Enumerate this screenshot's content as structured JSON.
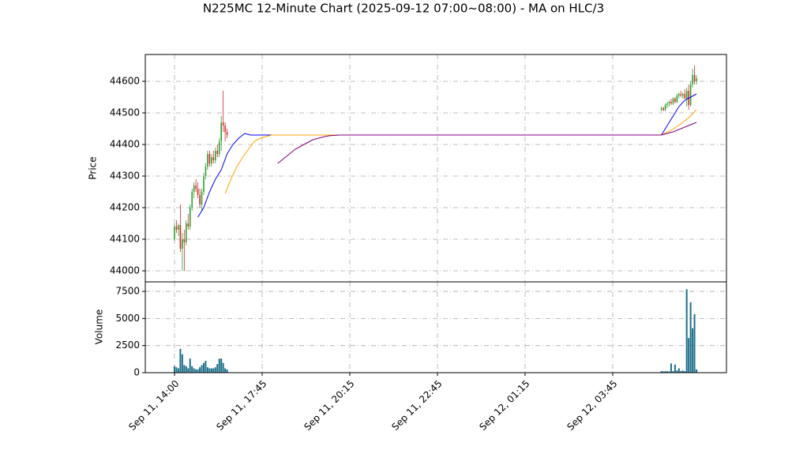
{
  "chart_data": {
    "type": "candlestick",
    "title": "N225MC 12-Minute Chart (2025-09-12 07:00~08:00) - MA on HLC/3",
    "ylabel": "Price",
    "grid": true,
    "xlim": [
      -15,
      283.4
    ],
    "xticks": [
      {
        "value": 0,
        "label": "Sep 11, 14:00"
      },
      {
        "value": 45,
        "label": "Sep 11, 17:45"
      },
      {
        "value": 90,
        "label": "Sep 11, 20:15"
      },
      {
        "value": 135,
        "label": "Sep 11, 22:45"
      },
      {
        "value": 180,
        "label": "Sep 12, 01:15"
      },
      {
        "value": 225,
        "label": "Sep 12, 03:45"
      }
    ],
    "ylim": [
      43965,
      44685
    ],
    "yticks": [
      44000,
      44100,
      44200,
      44300,
      44400,
      44500,
      44600
    ],
    "up_color": "#2ca02c",
    "down_color": "#d62728",
    "candles": {
      "x": [
        0,
        1,
        2,
        3,
        4,
        5,
        6,
        7,
        8,
        9,
        10,
        11,
        12,
        13,
        14,
        15,
        16,
        17,
        18,
        19,
        20,
        21,
        22,
        23,
        24,
        25,
        26,
        27,
        250,
        251,
        252,
        253,
        254,
        255,
        256,
        257,
        258,
        259,
        260,
        261,
        262,
        263,
        264,
        265,
        266,
        267,
        268
      ],
      "open": [
        44100,
        44140,
        44130,
        44145,
        44070,
        44100,
        44090,
        44150,
        44140,
        44200,
        44250,
        44270,
        44260,
        44240,
        44210,
        44250,
        44300,
        44330,
        44370,
        44340,
        44360,
        44350,
        44380,
        44370,
        44410,
        44470,
        44460,
        44440,
        44510,
        44515,
        44510,
        44525,
        44530,
        44535,
        44530,
        44545,
        44535,
        44555,
        44560,
        44555,
        44560,
        44545,
        44570,
        44525,
        44590,
        44620,
        44600
      ],
      "high": [
        44150,
        44160,
        44150,
        44210,
        44120,
        44130,
        44160,
        44180,
        44210,
        44260,
        44280,
        44290,
        44280,
        44260,
        44260,
        44310,
        44340,
        44380,
        44380,
        44370,
        44380,
        44390,
        44400,
        44420,
        44490,
        44570,
        44470,
        44450,
        44520,
        44520,
        44530,
        44535,
        44540,
        44545,
        44550,
        44550,
        44560,
        44565,
        44570,
        44565,
        44575,
        44580,
        44590,
        44600,
        44640,
        44650,
        44620
      ],
      "low": [
        44095,
        44120,
        44110,
        44060,
        44000,
        44000,
        44080,
        44130,
        44130,
        44190,
        44230,
        44250,
        44230,
        44200,
        44190,
        44240,
        44290,
        44320,
        44330,
        44330,
        44340,
        44340,
        44360,
        44360,
        44380,
        44440,
        44410,
        44420,
        44505,
        44505,
        44505,
        44515,
        44520,
        44525,
        44525,
        44530,
        44530,
        44545,
        44550,
        44545,
        44550,
        44520,
        44510,
        44520,
        44580,
        44590,
        44590
      ],
      "close": [
        44140,
        44130,
        44145,
        44070,
        44100,
        44090,
        44150,
        44140,
        44200,
        44250,
        44270,
        44260,
        44240,
        44210,
        44250,
        44300,
        44330,
        44370,
        44340,
        44360,
        44350,
        44380,
        44370,
        44410,
        44470,
        44460,
        44440,
        44430,
        44515,
        44510,
        44525,
        44530,
        44535,
        44530,
        44545,
        44535,
        44555,
        44560,
        44555,
        44560,
        44545,
        44570,
        44525,
        44590,
        44620,
        44600,
        44610
      ]
    },
    "series": [
      {
        "color": "#0000ff",
        "x": [
          12,
          15,
          18,
          21,
          24,
          27,
          30,
          33,
          36,
          39,
          42,
          48,
          100,
          150,
          200,
          250,
          253,
          256,
          259,
          262,
          265,
          268
        ],
        "values": [
          44170,
          44200,
          44250,
          44290,
          44320,
          44370,
          44400,
          44420,
          44435,
          44430,
          44430,
          44430,
          44430,
          44430,
          44430,
          44430,
          44460,
          44490,
          44520,
          44540,
          44550,
          44560
        ]
      },
      {
        "color": "#ffa500",
        "x": [
          26,
          29,
          32,
          35,
          38,
          41,
          44,
          47,
          50,
          55,
          100,
          150,
          200,
          250,
          255,
          260,
          265,
          268
        ],
        "values": [
          44245,
          44290,
          44330,
          44360,
          44385,
          44410,
          44420,
          44425,
          44430,
          44430,
          44430,
          44430,
          44430,
          44430,
          44445,
          44465,
          44490,
          44510
        ]
      },
      {
        "color": "#800080",
        "x": [
          53,
          56,
          59,
          62,
          65,
          68,
          71,
          74,
          77,
          80,
          85,
          100,
          150,
          200,
          250,
          256,
          262,
          268
        ],
        "values": [
          44340,
          44355,
          44370,
          44385,
          44395,
          44405,
          44415,
          44420,
          44425,
          44428,
          44430,
          44430,
          44430,
          44430,
          44430,
          44440,
          44455,
          44470
        ]
      }
    ],
    "volume": {
      "ylabel": "Volume",
      "color": "#1f6f8b",
      "ylim": [
        0,
        8380
      ],
      "yticks": [
        0,
        2500,
        5000,
        7500
      ],
      "values": [
        600,
        500,
        400,
        2200,
        1700,
        700,
        600,
        400,
        1300,
        600,
        400,
        300,
        300,
        500,
        700,
        900,
        1100,
        500,
        400,
        400,
        400,
        500,
        800,
        1300,
        1300,
        900,
        400,
        300,
        150,
        120,
        150,
        130,
        120,
        850,
        150,
        750,
        200,
        400,
        150,
        200,
        150,
        7700,
        3200,
        6500,
        4100,
        5400,
        300
      ]
    }
  }
}
